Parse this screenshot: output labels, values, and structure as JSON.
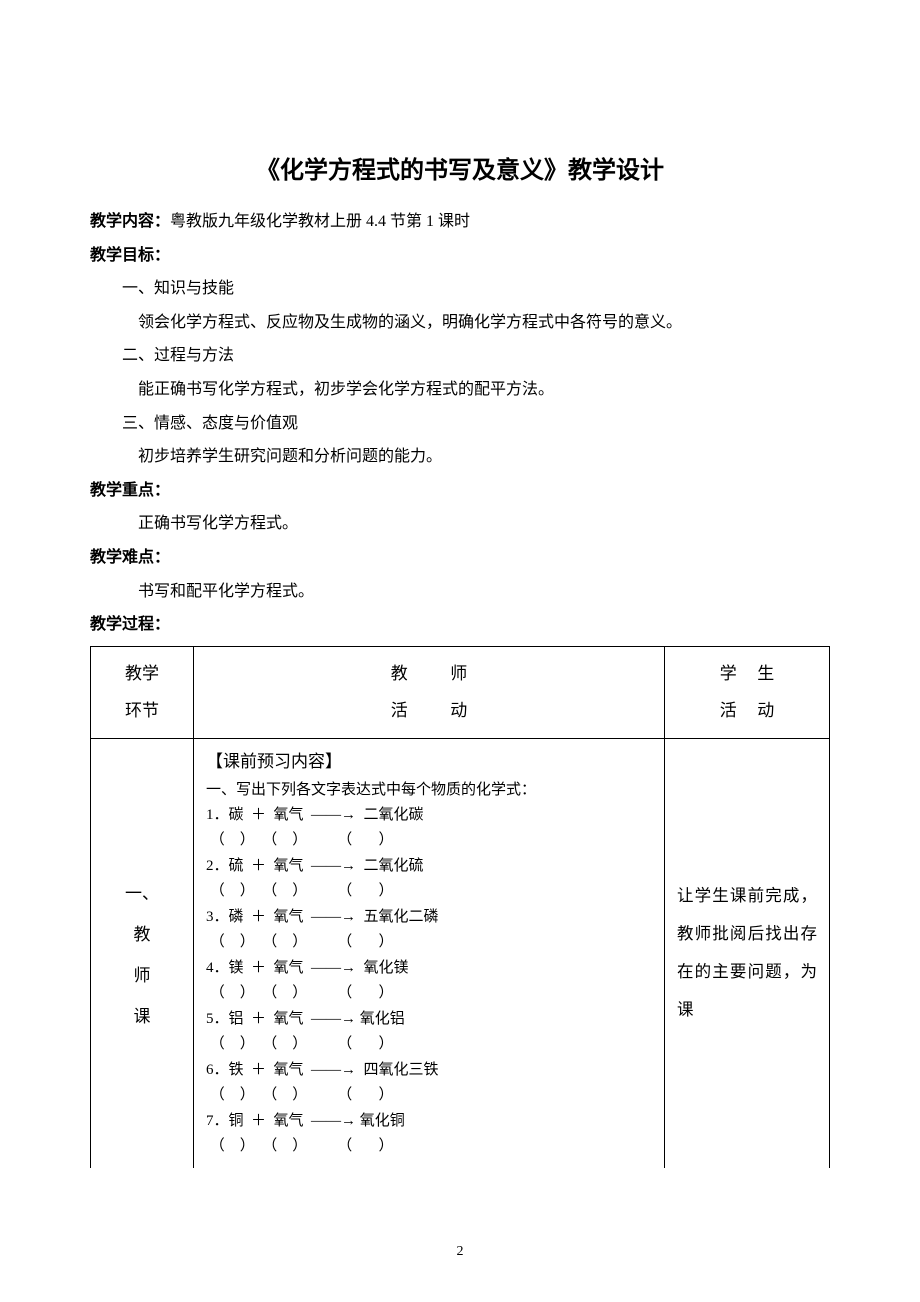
{
  "title": "《化学方程式的书写及意义》教学设计",
  "content_label": "教学内容：",
  "content_value": "粤教版九年级化学教材上册 4.4 节第 1 课时",
  "goal_label": "教学目标：",
  "goal_1_h": "一、知识与技能",
  "goal_1_b": "领会化学方程式、反应物及生成物的涵义，明确化学方程式中各符号的意义。",
  "goal_2_h": "二、过程与方法",
  "goal_2_b": "能正确书写化学方程式，初步学会化学方程式的配平方法。",
  "goal_3_h": "三、情感、态度与价值观",
  "goal_3_b": "初步培养学生研究问题和分析问题的能力。",
  "focus_label": "教学重点：",
  "focus_body": "正确书写化学方程式。",
  "diff_label": "教学难点：",
  "diff_body": "书写和配平化学方程式。",
  "proc_label": "教学过程：",
  "table": {
    "h1_a": "教学",
    "h1_b": "环节",
    "h2_a": "教",
    "h2_b": "师",
    "h2_c": "活",
    "h2_d": "动",
    "h3_a": "学",
    "h3_b": "生",
    "h3_c": "活",
    "h3_d": "动",
    "stage_chars": [
      "一、",
      "教",
      "师",
      "课"
    ],
    "preview_title": "【课前预习内容】",
    "preview_sub": "一、写出下列各文字表达式中每个物质的化学式：",
    "items": [
      "1．碳  ＋  氧气  ——→  二氧化碳",
      "2．硫  ＋  氧气  ——→  二氧化硫",
      "3．磷  ＋  氧气  ——→  五氧化二磷",
      "4．镁  ＋  氧气  ——→  氧化镁",
      "5．铝  ＋  氧气  ——→ 氧化铝",
      "6．铁  ＋  氧气  ——→  四氧化三铁",
      "7．铜  ＋  氧气  ——→ 氧化铜"
    ],
    "blanks": " （    ）  （    ）        （       ）",
    "student_text": "让学生课前完成，教师批阅后找出存在的主要问题，为课"
  },
  "page_number": "2"
}
